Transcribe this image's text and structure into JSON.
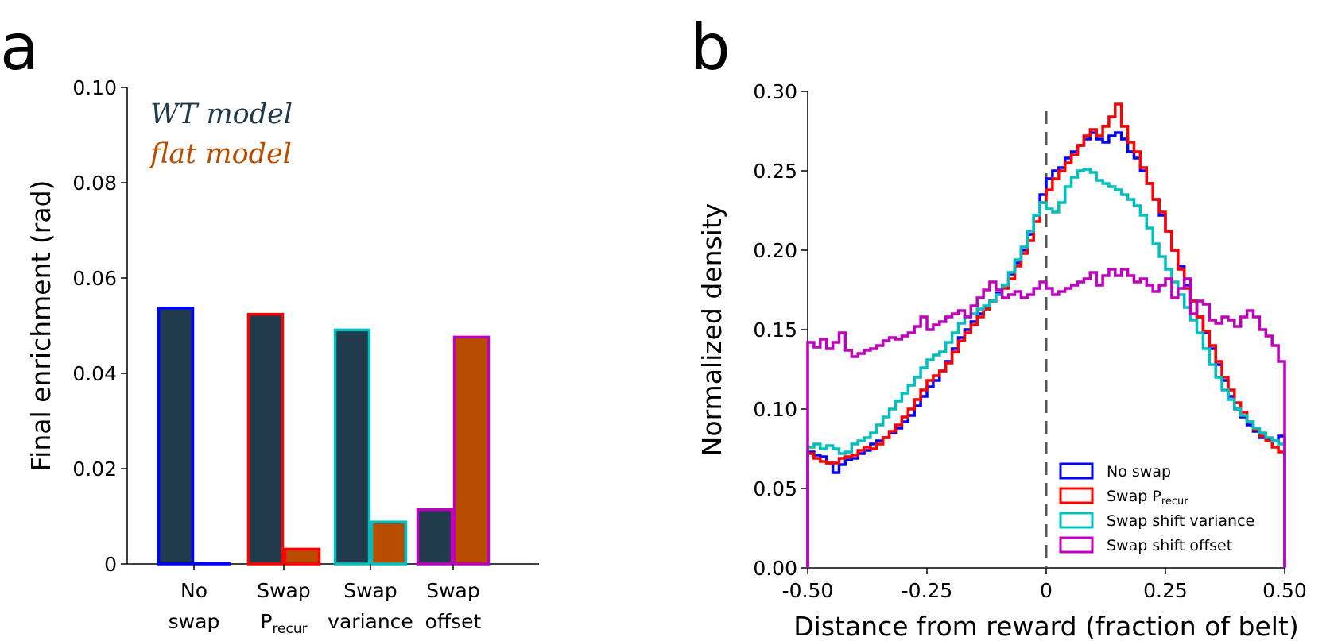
{
  "chart_data": [
    {
      "type": "bar",
      "panel_label": "a",
      "ylabel": "Final enrichment (rad)",
      "ylim": [
        0,
        0.1
      ],
      "yticks": [
        "0",
        "0.02",
        "0.04",
        "0.06",
        "0.08",
        "0.10"
      ],
      "yticks_values": [
        0,
        0.02,
        0.04,
        0.06,
        0.08,
        0.1
      ],
      "categories": [
        {
          "line1": "No",
          "line2": "swap",
          "line2_sub": ""
        },
        {
          "line1": "Swap",
          "line2": "P",
          "line2_sub": "recur"
        },
        {
          "line1": "Swap",
          "line2": "variance",
          "line2_sub": ""
        },
        {
          "line1": "Swap",
          "line2": "offset",
          "line2_sub": ""
        }
      ],
      "series": [
        {
          "name": "WT model",
          "fill": "#213a4c",
          "values": [
            0.0537,
            0.0524,
            0.0491,
            0.0114
          ]
        },
        {
          "name": "flat model",
          "fill": "#b84d02",
          "values": [
            0.0001,
            0.0031,
            0.0088,
            0.0476
          ]
        }
      ],
      "edge_colors": [
        "#0000ff",
        "#ff0000",
        "#00bfbf",
        "#bf00bf"
      ],
      "legend": [
        {
          "text": "WT model",
          "color": "#213a4c"
        },
        {
          "text": "flat model",
          "color": "#b84d02"
        }
      ]
    },
    {
      "type": "line",
      "step": true,
      "panel_label": "b",
      "xlabel": "Distance from reward (fraction of belt)",
      "ylabel": "Normalized density",
      "xlim": [
        -0.5,
        0.5
      ],
      "ylim": [
        0,
        0.3
      ],
      "xticks": [
        "-0.50",
        "-0.25",
        "0",
        "0.25",
        "0.50"
      ],
      "xticks_values": [
        -0.5,
        -0.25,
        0,
        0.25,
        0.5
      ],
      "yticks": [
        "0.00",
        "0.05",
        "0.10",
        "0.15",
        "0.20",
        "0.25",
        "0.30"
      ],
      "yticks_values": [
        0,
        0.05,
        0.1,
        0.15,
        0.2,
        0.25,
        0.3
      ],
      "vline_x": 0,
      "bin_edges_start": -0.5,
      "bin_width": 0.0125,
      "series": [
        {
          "name": "No swap",
          "label_main": "No swap",
          "label_sub": "",
          "color": "#0000ff",
          "values": [
            0.073,
            0.071,
            0.07,
            0.066,
            0.06,
            0.065,
            0.068,
            0.069,
            0.072,
            0.074,
            0.078,
            0.08,
            0.082,
            0.085,
            0.088,
            0.092,
            0.096,
            0.102,
            0.108,
            0.114,
            0.118,
            0.124,
            0.13,
            0.138,
            0.145,
            0.15,
            0.155,
            0.16,
            0.163,
            0.168,
            0.173,
            0.178,
            0.185,
            0.192,
            0.2,
            0.21,
            0.222,
            0.235,
            0.245,
            0.25,
            0.252,
            0.258,
            0.262,
            0.266,
            0.27,
            0.274,
            0.27,
            0.268,
            0.272,
            0.274,
            0.27,
            0.262,
            0.258,
            0.25,
            0.242,
            0.232,
            0.222,
            0.212,
            0.2,
            0.19,
            0.178,
            0.168,
            0.158,
            0.148,
            0.138,
            0.128,
            0.118,
            0.108,
            0.1,
            0.095,
            0.09,
            0.086,
            0.082,
            0.081,
            0.08,
            0.083
          ]
        },
        {
          "name": "Swap Precur",
          "label_main": "Swap P",
          "label_sub": "recur",
          "color": "#ff0000",
          "values": [
            0.072,
            0.069,
            0.067,
            0.066,
            0.066,
            0.069,
            0.07,
            0.071,
            0.074,
            0.076,
            0.075,
            0.078,
            0.082,
            0.086,
            0.09,
            0.095,
            0.1,
            0.106,
            0.112,
            0.118,
            0.121,
            0.124,
            0.129,
            0.136,
            0.143,
            0.148,
            0.153,
            0.158,
            0.163,
            0.168,
            0.172,
            0.176,
            0.182,
            0.19,
            0.198,
            0.206,
            0.218,
            0.23,
            0.238,
            0.245,
            0.25,
            0.255,
            0.26,
            0.266,
            0.272,
            0.276,
            0.272,
            0.278,
            0.284,
            0.292,
            0.278,
            0.268,
            0.262,
            0.252,
            0.242,
            0.232,
            0.224,
            0.212,
            0.2,
            0.188,
            0.176,
            0.168,
            0.158,
            0.149,
            0.14,
            0.13,
            0.12,
            0.112,
            0.104,
            0.098,
            0.092,
            0.087,
            0.083,
            0.08,
            0.076,
            0.073
          ]
        },
        {
          "name": "Swap shift variance",
          "label_main": "Swap shift variance",
          "label_sub": "",
          "color": "#00bfbf",
          "values": [
            0.076,
            0.078,
            0.075,
            0.077,
            0.075,
            0.072,
            0.073,
            0.078,
            0.08,
            0.082,
            0.085,
            0.09,
            0.095,
            0.1,
            0.105,
            0.11,
            0.115,
            0.12,
            0.126,
            0.131,
            0.134,
            0.136,
            0.142,
            0.148,
            0.154,
            0.158,
            0.16,
            0.163,
            0.165,
            0.168,
            0.172,
            0.178,
            0.186,
            0.194,
            0.202,
            0.212,
            0.222,
            0.23,
            0.226,
            0.224,
            0.23,
            0.24,
            0.246,
            0.25,
            0.251,
            0.249,
            0.244,
            0.242,
            0.24,
            0.238,
            0.235,
            0.232,
            0.228,
            0.222,
            0.214,
            0.204,
            0.196,
            0.188,
            0.18,
            0.172,
            0.164,
            0.156,
            0.148,
            0.138,
            0.128,
            0.12,
            0.112,
            0.106,
            0.1,
            0.096,
            0.092,
            0.088,
            0.085,
            0.082,
            0.08,
            0.078
          ]
        },
        {
          "name": "Swap shift offset",
          "label_main": "Swap shift offset",
          "label_sub": "",
          "color": "#bf00bf",
          "values": [
            0.142,
            0.139,
            0.144,
            0.138,
            0.142,
            0.148,
            0.137,
            0.133,
            0.135,
            0.137,
            0.138,
            0.14,
            0.143,
            0.145,
            0.144,
            0.146,
            0.148,
            0.152,
            0.158,
            0.15,
            0.153,
            0.155,
            0.158,
            0.16,
            0.162,
            0.158,
            0.165,
            0.17,
            0.175,
            0.18,
            0.175,
            0.17,
            0.172,
            0.174,
            0.17,
            0.172,
            0.176,
            0.18,
            0.176,
            0.172,
            0.174,
            0.176,
            0.178,
            0.18,
            0.182,
            0.186,
            0.178,
            0.184,
            0.188,
            0.184,
            0.188,
            0.184,
            0.18,
            0.182,
            0.178,
            0.174,
            0.178,
            0.182,
            0.17,
            0.176,
            0.182,
            0.16,
            0.168,
            0.166,
            0.156,
            0.154,
            0.158,
            0.156,
            0.152,
            0.158,
            0.162,
            0.158,
            0.15,
            0.146,
            0.14,
            0.13
          ]
        }
      ]
    }
  ]
}
